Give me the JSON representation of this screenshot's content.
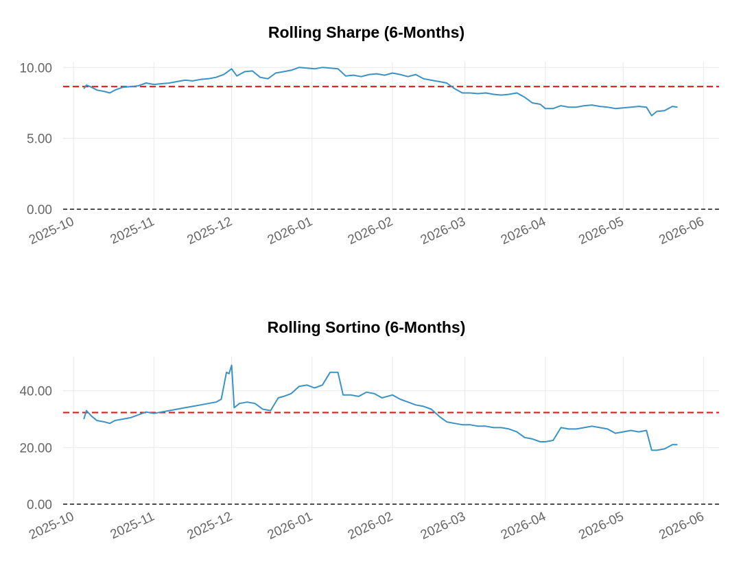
{
  "chart_data": [
    {
      "type": "line",
      "title": "Rolling Sharpe (6-Months)",
      "ylim": [
        0,
        10.4
      ],
      "yticks": [
        "0.00",
        "5.00",
        "10.00"
      ],
      "ytick_values": [
        0,
        5,
        10
      ],
      "xticks": [
        "2025-10",
        "2025-11",
        "2025-12",
        "2026-01",
        "2026-02",
        "2026-03",
        "2026-04",
        "2026-05",
        "2026-06"
      ],
      "grid": true,
      "series": [
        {
          "color": "#3a92c4",
          "x": [
            "2025-10-05",
            "2025-10-06",
            "2025-10-08",
            "2025-10-10",
            "2025-10-13",
            "2025-10-15",
            "2025-10-17",
            "2025-10-20",
            "2025-10-23",
            "2025-10-26",
            "2025-10-29",
            "2025-11-01",
            "2025-11-04",
            "2025-11-07",
            "2025-11-10",
            "2025-11-13",
            "2025-11-16",
            "2025-11-19",
            "2025-11-22",
            "2025-11-25",
            "2025-11-28",
            "2025-12-01",
            "2025-12-03",
            "2025-12-06",
            "2025-12-09",
            "2025-12-12",
            "2025-12-15",
            "2025-12-18",
            "2025-12-21",
            "2025-12-24",
            "2025-12-27",
            "2025-12-30",
            "2026-01-02",
            "2026-01-05",
            "2026-01-08",
            "2026-01-11",
            "2026-01-14",
            "2026-01-17",
            "2026-01-20",
            "2026-01-23",
            "2026-01-26",
            "2026-01-29",
            "2026-02-01",
            "2026-02-04",
            "2026-02-07",
            "2026-02-10",
            "2026-02-13",
            "2026-02-16",
            "2026-02-19",
            "2026-02-22",
            "2026-02-25",
            "2026-02-28",
            "2026-03-03",
            "2026-03-06",
            "2026-03-09",
            "2026-03-12",
            "2026-03-15",
            "2026-03-18",
            "2026-03-21",
            "2026-03-24",
            "2026-03-27",
            "2026-03-30",
            "2026-04-01",
            "2026-04-04",
            "2026-04-07",
            "2026-04-10",
            "2026-04-13",
            "2026-04-16",
            "2026-04-19",
            "2026-04-22",
            "2026-04-25",
            "2026-04-28",
            "2026-05-01",
            "2026-05-04",
            "2026-05-07",
            "2026-05-10",
            "2026-05-12",
            "2026-05-14",
            "2026-05-17",
            "2026-05-20",
            "2026-05-22"
          ],
          "y": [
            8.5,
            8.75,
            8.6,
            8.4,
            8.3,
            8.2,
            8.4,
            8.6,
            8.65,
            8.7,
            8.9,
            8.8,
            8.85,
            8.9,
            9.0,
            9.1,
            9.05,
            9.15,
            9.2,
            9.3,
            9.5,
            9.9,
            9.4,
            9.7,
            9.75,
            9.3,
            9.2,
            9.6,
            9.7,
            9.8,
            10.0,
            9.95,
            9.9,
            10.0,
            9.95,
            9.9,
            9.4,
            9.45,
            9.35,
            9.5,
            9.55,
            9.45,
            9.6,
            9.5,
            9.35,
            9.5,
            9.2,
            9.1,
            9.0,
            8.9,
            8.5,
            8.2,
            8.2,
            8.15,
            8.2,
            8.1,
            8.05,
            8.1,
            8.2,
            7.9,
            7.5,
            7.4,
            7.1,
            7.1,
            7.3,
            7.2,
            7.2,
            7.3,
            7.35,
            7.25,
            7.2,
            7.1,
            7.15,
            7.2,
            7.25,
            7.2,
            6.6,
            6.9,
            6.95,
            7.25,
            7.2
          ]
        },
        {
          "color": "#e31a1c",
          "style": "dashed",
          "y_const": 8.65
        },
        {
          "color": "#111111",
          "style": "dashed",
          "y_const": 0.0
        }
      ]
    },
    {
      "type": "line",
      "title": "Rolling Sortino (6-Months)",
      "ylim": [
        0,
        52
      ],
      "yticks": [
        "0.00",
        "20.00",
        "40.00"
      ],
      "ytick_values": [
        0,
        20,
        40
      ],
      "xticks": [
        "2025-10",
        "2025-11",
        "2025-12",
        "2026-01",
        "2026-02",
        "2026-03",
        "2026-04",
        "2026-05",
        "2026-06"
      ],
      "grid": true,
      "series": [
        {
          "color": "#3a92c4",
          "x": [
            "2025-10-05",
            "2025-10-06",
            "2025-10-08",
            "2025-10-10",
            "2025-10-13",
            "2025-10-15",
            "2025-10-17",
            "2025-10-20",
            "2025-10-23",
            "2025-10-26",
            "2025-10-29",
            "2025-11-01",
            "2025-11-04",
            "2025-11-07",
            "2025-11-10",
            "2025-11-13",
            "2025-11-16",
            "2025-11-19",
            "2025-11-22",
            "2025-11-25",
            "2025-11-27",
            "2025-11-29",
            "2025-11-30",
            "2025-12-01",
            "2025-12-02",
            "2025-12-04",
            "2025-12-07",
            "2025-12-10",
            "2025-12-13",
            "2025-12-16",
            "2025-12-19",
            "2025-12-21",
            "2025-12-24",
            "2025-12-27",
            "2025-12-30",
            "2026-01-02",
            "2026-01-05",
            "2026-01-08",
            "2026-01-11",
            "2026-01-13",
            "2026-01-16",
            "2026-01-19",
            "2026-01-22",
            "2026-01-25",
            "2026-01-28",
            "2026-02-01",
            "2026-02-04",
            "2026-02-07",
            "2026-02-10",
            "2026-02-13",
            "2026-02-16",
            "2026-02-19",
            "2026-02-22",
            "2026-02-25",
            "2026-02-28",
            "2026-03-03",
            "2026-03-06",
            "2026-03-09",
            "2026-03-12",
            "2026-03-15",
            "2026-03-18",
            "2026-03-21",
            "2026-03-24",
            "2026-03-27",
            "2026-03-30",
            "2026-04-01",
            "2026-04-04",
            "2026-04-07",
            "2026-04-10",
            "2026-04-13",
            "2026-04-16",
            "2026-04-19",
            "2026-04-22",
            "2026-04-25",
            "2026-04-28",
            "2026-05-01",
            "2026-05-04",
            "2026-05-07",
            "2026-05-10",
            "2026-05-12",
            "2026-05-14",
            "2026-05-17",
            "2026-05-20",
            "2026-05-22"
          ],
          "y": [
            30.0,
            33.0,
            31.0,
            29.5,
            29.0,
            28.5,
            29.5,
            30.0,
            30.5,
            31.5,
            32.5,
            32.0,
            32.5,
            33.0,
            33.5,
            34.0,
            34.5,
            35.0,
            35.5,
            36.0,
            37.0,
            46.5,
            46.0,
            49.0,
            34.0,
            35.5,
            36.0,
            35.5,
            33.5,
            33.0,
            37.5,
            38.0,
            39.0,
            41.5,
            42.0,
            41.0,
            42.0,
            46.5,
            46.5,
            38.5,
            38.5,
            38.0,
            39.5,
            39.0,
            37.5,
            38.5,
            37.0,
            36.0,
            35.0,
            34.5,
            33.5,
            31.0,
            29.0,
            28.5,
            28.0,
            28.0,
            27.5,
            27.5,
            27.0,
            27.0,
            26.5,
            25.5,
            23.5,
            23.0,
            22.0,
            22.0,
            22.5,
            27.0,
            26.5,
            26.5,
            27.0,
            27.5,
            27.0,
            26.5,
            25.0,
            25.5,
            26.0,
            25.5,
            26.0,
            19.0,
            19.0,
            19.5,
            21.0,
            21.0
          ]
        },
        {
          "color": "#e31a1c",
          "style": "dashed",
          "y_const": 32.3
        },
        {
          "color": "#111111",
          "style": "dashed",
          "y_const": 0.0
        }
      ]
    }
  ]
}
